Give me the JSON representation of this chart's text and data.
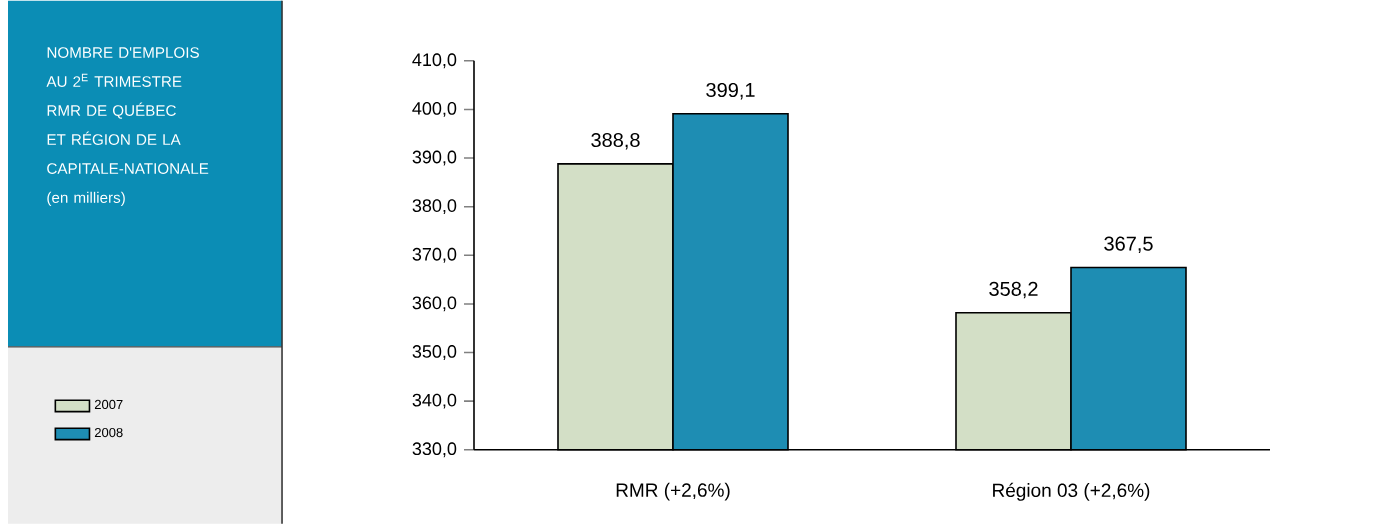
{
  "chart_data": {
    "type": "bar",
    "title": "NOMBRE D'EMPLOIS AU 2$^{E}$ TRIMESTRE RMR DE QUÉBEC ET RÉGION DE LA CAPITALE-NATIONALE",
    "subtitle": "(en milliers)",
    "categories": [
      "RMR (+2,6%)",
      "Région 03 (+2,6%)"
    ],
    "series": [
      {
        "name": "2007",
        "color": "#d3dfc6",
        "values": [
          388.8,
          358.2
        ],
        "value_labels": [
          "388,8",
          "358,2"
        ]
      },
      {
        "name": "2008",
        "color": "#1e8db3",
        "values": [
          399.1,
          367.5
        ],
        "value_labels": [
          "399,1",
          "367,5"
        ]
      }
    ],
    "ylim": [
      330,
      410
    ],
    "yticks": [
      {
        "value": 330,
        "label": "330,0"
      },
      {
        "value": 340,
        "label": "340,0"
      },
      {
        "value": 350,
        "label": "350,0"
      },
      {
        "value": 360,
        "label": "360,0"
      },
      {
        "value": 370,
        "label": "370,0"
      },
      {
        "value": 380,
        "label": "380,0"
      },
      {
        "value": 390,
        "label": "390,0"
      },
      {
        "value": 400,
        "label": "400,0"
      },
      {
        "value": 410,
        "label": "410,0"
      }
    ],
    "legend": "left",
    "grid": false
  }
}
